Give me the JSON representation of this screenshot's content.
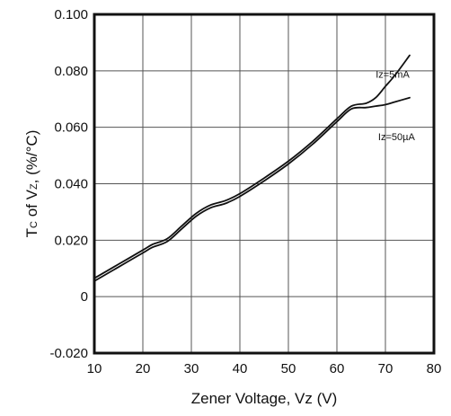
{
  "chart_data": {
    "type": "line",
    "title": "",
    "xlabel": "Zener Voltage, Vz (V)",
    "ylabel": "Tc of Vz, (%/°C)",
    "ylabel_parts": [
      "T",
      "C",
      " of V",
      "Z",
      ", (%/°C)"
    ],
    "xlim": [
      10,
      80
    ],
    "ylim": [
      -0.02,
      0.1
    ],
    "x_ticks": [
      10,
      20,
      30,
      40,
      50,
      60,
      70,
      80
    ],
    "x_tick_labels": [
      "10",
      "20",
      "30",
      "40",
      "50",
      "60",
      "70",
      "80"
    ],
    "y_ticks": [
      -0.02,
      0,
      0.02,
      0.04,
      0.06,
      0.08,
      0.1
    ],
    "y_tick_labels": [
      "-0.020",
      "0",
      "0.020",
      "0.040",
      "0.060",
      "0.080",
      "0.100"
    ],
    "grid": true,
    "series": [
      {
        "name": "Iz=5mA",
        "x": [
          10,
          15,
          20,
          22,
          25,
          28,
          31,
          34,
          37,
          40,
          45,
          50,
          55,
          60,
          63,
          66,
          68,
          70,
          72,
          75
        ],
        "y": [
          0.0065,
          0.0115,
          0.0165,
          0.0185,
          0.0205,
          0.025,
          0.0295,
          0.0325,
          0.034,
          0.0365,
          0.042,
          0.048,
          0.055,
          0.063,
          0.0675,
          0.0685,
          0.0705,
          0.0745,
          0.0785,
          0.0855
        ]
      },
      {
        "name": "Iz=50µA",
        "x": [
          10,
          15,
          20,
          22,
          25,
          28,
          31,
          34,
          37,
          40,
          45,
          50,
          55,
          60,
          63,
          66,
          68,
          70,
          72,
          75
        ],
        "y": [
          0.0055,
          0.0105,
          0.0155,
          0.0175,
          0.0195,
          0.024,
          0.0285,
          0.0315,
          0.033,
          0.0355,
          0.041,
          0.047,
          0.054,
          0.062,
          0.0665,
          0.067,
          0.0675,
          0.068,
          0.069,
          0.0705
        ]
      }
    ],
    "annotations": [
      {
        "text": "Iz=5mA",
        "x": 68,
        "y": 0.0775
      },
      {
        "text": "Iz=50µA",
        "x": 68.5,
        "y": 0.0555
      }
    ]
  }
}
